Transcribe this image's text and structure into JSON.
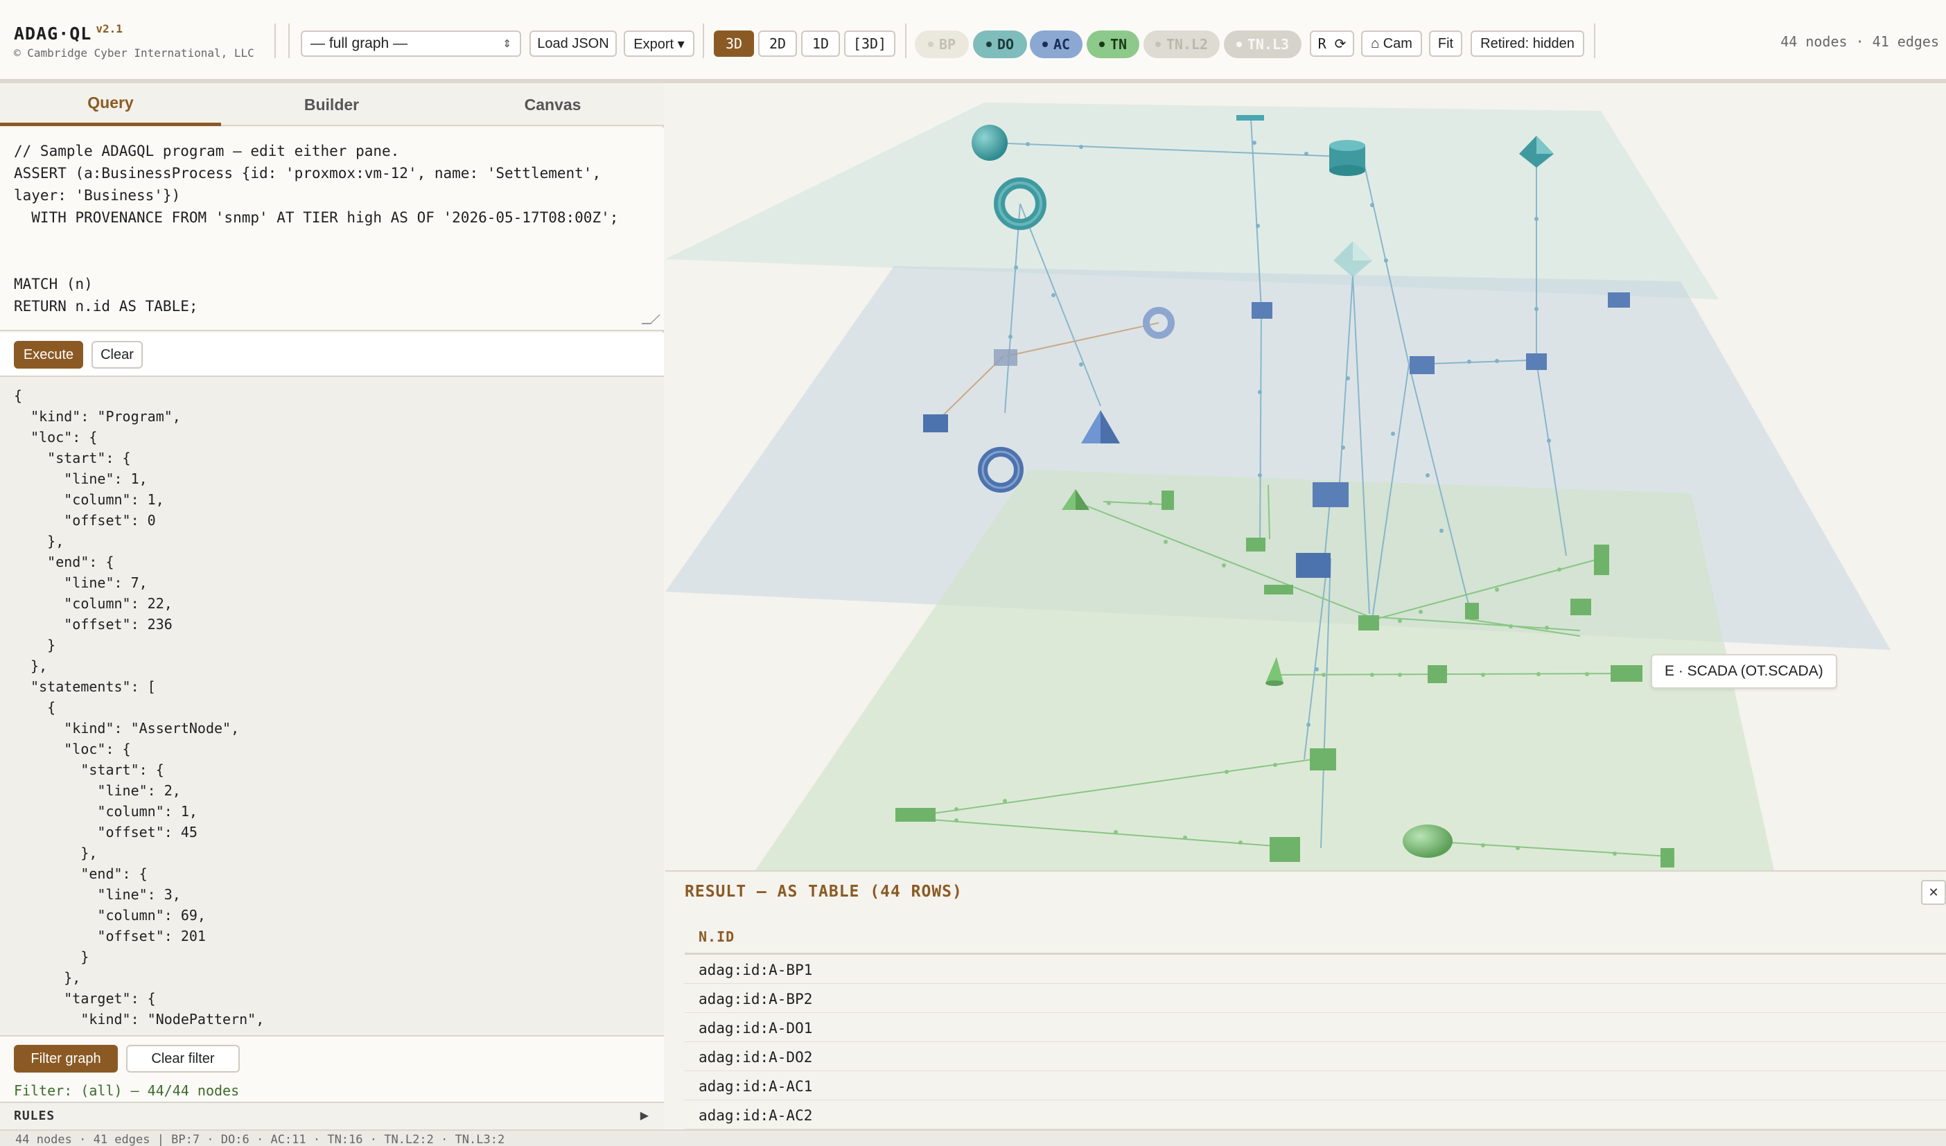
{
  "app": {
    "name": "ADAG·QL",
    "version": "v2.1",
    "copyright": "© Cambridge Cyber International, LLC"
  },
  "toolbar": {
    "graph_select_value": "— full graph —",
    "load_json": "Load JSON",
    "export": "Export ▾",
    "view_3d": "3D",
    "view_2d": "2D",
    "view_1d": "1D",
    "view_3d_bracket": "[3D]",
    "layers": {
      "bp": "BP",
      "do": "DO",
      "ac": "AC",
      "tn": "TN",
      "tnl2": "TN.L2",
      "tnl3": "TN.L3"
    },
    "reset": "R ⟳",
    "cam": "⌂ Cam",
    "fit": "Fit",
    "retired": "Retired: hidden",
    "stats": "44 nodes · 41 edges"
  },
  "left": {
    "tabs": [
      "Query",
      "Builder",
      "Canvas"
    ],
    "active_tab": "Query",
    "query_text": "// Sample ADAGQL program — edit either pane.\nASSERT (a:BusinessProcess {id: 'proxmox:vm-12', name: 'Settlement',\nlayer: 'Business'})\n  WITH PROVENANCE FROM 'snmp' AT TIER high AS OF '2026-05-17T08:00Z';\n\n\nMATCH (n)\nRETURN n.id AS TABLE;",
    "execute": "Execute",
    "clear": "Clear",
    "ast_text": "{\n  \"kind\": \"Program\",\n  \"loc\": {\n    \"start\": {\n      \"line\": 1,\n      \"column\": 1,\n      \"offset\": 0\n    },\n    \"end\": {\n      \"line\": 7,\n      \"column\": 22,\n      \"offset\": 236\n    }\n  },\n  \"statements\": [\n    {\n      \"kind\": \"AssertNode\",\n      \"loc\": {\n        \"start\": {\n          \"line\": 2,\n          \"column\": 1,\n          \"offset\": 45\n        },\n        \"end\": {\n          \"line\": 3,\n          \"column\": 69,\n          \"offset\": 201\n        }\n      },\n      \"target\": {\n        \"kind\": \"NodePattern\",",
    "filter_graph": "Filter graph",
    "clear_filter": "Clear filter",
    "filter_status": "Filter: (all) — 44/44 nodes",
    "rules": "RULES"
  },
  "canvas": {
    "tooltip": "E · SCADA (OT.SCADA)"
  },
  "result": {
    "title": "RESULT — AS TABLE (44 ROWS)",
    "column": "N.ID",
    "rows": [
      "adag:id:A-BP1",
      "adag:id:A-BP2",
      "adag:id:A-DO1",
      "adag:id:A-DO2",
      "adag:id:A-AC1",
      "adag:id:A-AC2"
    ]
  },
  "statusbar": "44 nodes · 41 edges | BP:7 · DO:6 · AC:11 · TN:16 · TN.L2:2 · TN.L3:2",
  "colors": {
    "accent": "#8b5a24",
    "do_layer": "#7fbcbc",
    "ac_layer": "#8aa8d2",
    "tn_layer": "#8dc98a"
  }
}
